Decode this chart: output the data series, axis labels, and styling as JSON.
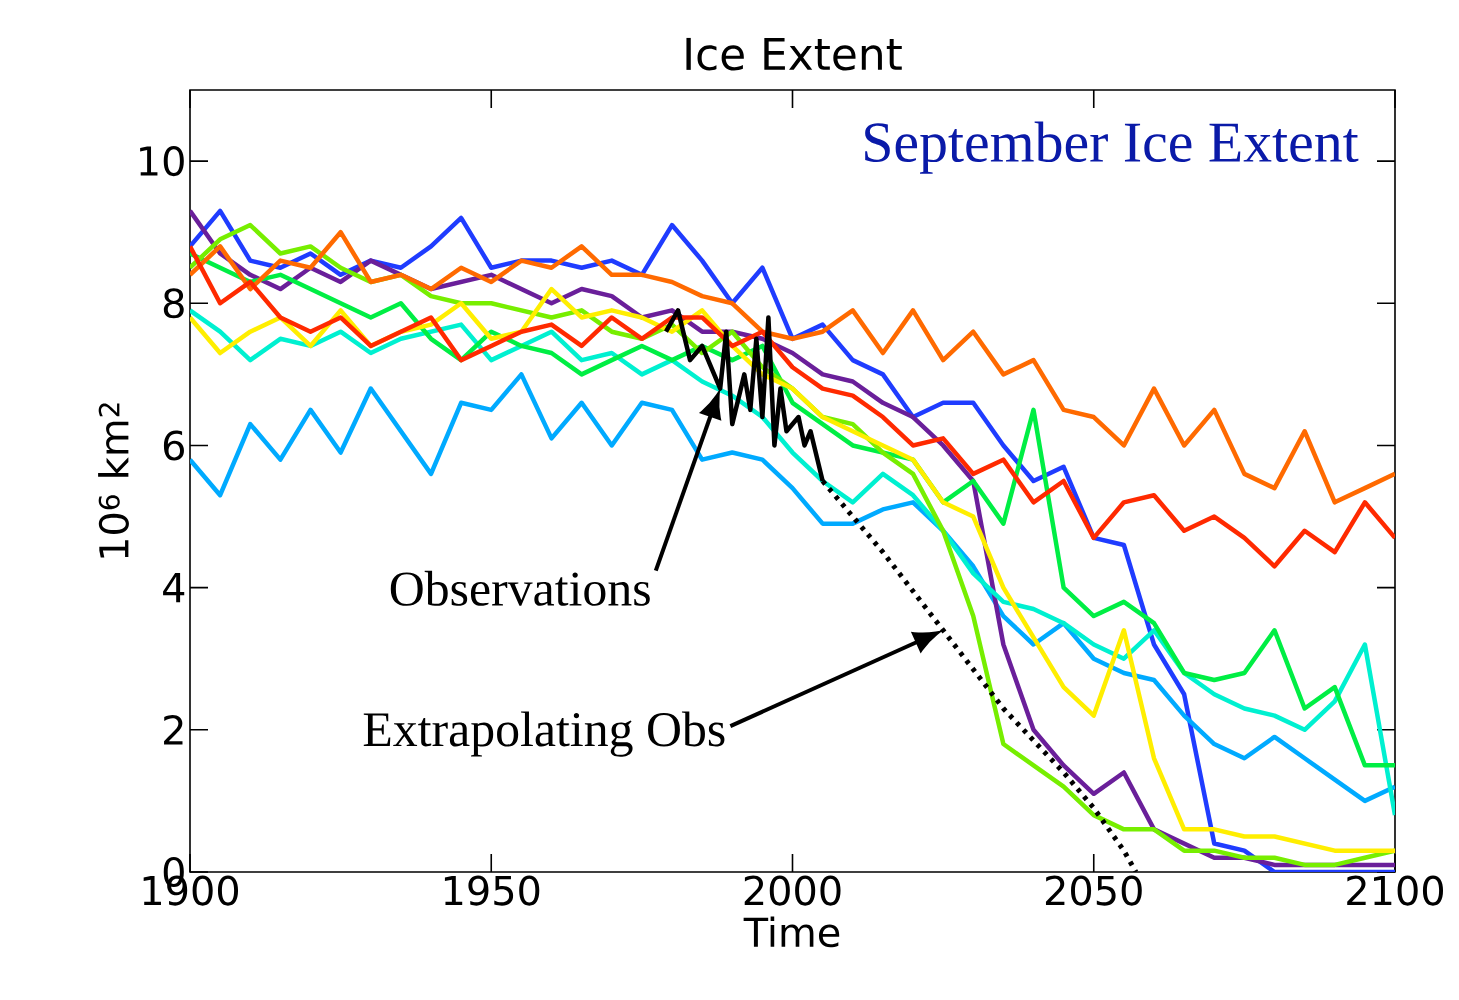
{
  "chart_data": {
    "type": "line",
    "title": "Ice Extent",
    "xlabel": "Time",
    "ylabel": "10$^{6}$ km$^{2}$",
    "xlim": [
      1900,
      2100
    ],
    "ylim": [
      0,
      11
    ],
    "xticks": [
      1900,
      1950,
      2000,
      2050,
      2100
    ],
    "yticks": [
      0,
      2,
      4,
      6,
      8,
      10
    ],
    "x": [
      1900,
      1905,
      1910,
      1915,
      1920,
      1925,
      1930,
      1935,
      1940,
      1945,
      1950,
      1955,
      1960,
      1965,
      1970,
      1975,
      1980,
      1985,
      1990,
      1995,
      2000,
      2005,
      2010,
      2015,
      2020,
      2025,
      2030,
      2035,
      2040,
      2045,
      2050,
      2055,
      2060,
      2065,
      2070,
      2075,
      2080,
      2085,
      2090,
      2095,
      2100
    ],
    "series": [
      {
        "color": "#1f3cff",
        "values": [
          8.8,
          9.3,
          8.6,
          8.5,
          8.7,
          8.4,
          8.6,
          8.5,
          8.8,
          9.2,
          8.5,
          8.6,
          8.6,
          8.5,
          8.6,
          8.4,
          9.1,
          8.6,
          8.0,
          8.5,
          7.5,
          7.7,
          7.2,
          7.0,
          6.4,
          6.6,
          6.6,
          6.0,
          5.5,
          5.7,
          4.7,
          4.6,
          3.2,
          2.5,
          0.4,
          0.3,
          0,
          0,
          0,
          0,
          0
        ]
      },
      {
        "color": "#00aaff",
        "values": [
          5.8,
          5.3,
          6.3,
          5.8,
          6.5,
          5.9,
          6.8,
          6.2,
          5.6,
          6.6,
          6.5,
          7.0,
          6.1,
          6.6,
          6.0,
          6.6,
          6.5,
          5.8,
          5.9,
          5.8,
          5.4,
          4.9,
          4.9,
          5.1,
          5.2,
          4.8,
          4.3,
          3.6,
          3.2,
          3.5,
          3.0,
          2.8,
          2.7,
          2.2,
          1.8,
          1.6,
          1.9,
          1.6,
          1.3,
          1.0,
          1.2
        ]
      },
      {
        "color": "#6a1f9a",
        "values": [
          9.3,
          8.7,
          8.4,
          8.2,
          8.5,
          8.3,
          8.6,
          8.4,
          8.2,
          8.3,
          8.4,
          8.2,
          8.0,
          8.2,
          8.1,
          7.8,
          7.9,
          7.6,
          7.6,
          7.5,
          7.3,
          7.0,
          6.9,
          6.6,
          6.4,
          6.0,
          5.5,
          3.2,
          2.0,
          1.5,
          1.1,
          1.4,
          0.6,
          0.4,
          0.2,
          0.2,
          0.1,
          0.1,
          0.1,
          0.1,
          0.1
        ]
      },
      {
        "color": "#00f0d0",
        "values": [
          7.9,
          7.6,
          7.2,
          7.5,
          7.4,
          7.6,
          7.3,
          7.5,
          7.6,
          7.7,
          7.2,
          7.4,
          7.6,
          7.2,
          7.3,
          7.0,
          7.2,
          6.9,
          6.7,
          6.4,
          5.9,
          5.5,
          5.2,
          5.6,
          5.3,
          4.8,
          4.2,
          3.8,
          3.7,
          3.5,
          3.2,
          3.0,
          3.4,
          2.8,
          2.5,
          2.3,
          2.2,
          2.0,
          2.4,
          3.2,
          0.8
        ]
      },
      {
        "color": "#00ee44",
        "values": [
          8.7,
          8.5,
          8.3,
          8.4,
          8.2,
          8.0,
          7.8,
          8.0,
          7.5,
          7.2,
          7.6,
          7.4,
          7.3,
          7.0,
          7.2,
          7.4,
          7.2,
          7.4,
          7.2,
          7.4,
          6.6,
          6.3,
          6.0,
          5.9,
          5.8,
          5.2,
          5.5,
          4.9,
          6.5,
          4.0,
          3.6,
          3.8,
          3.5,
          2.8,
          2.7,
          2.8,
          3.4,
          2.3,
          2.6,
          1.5,
          1.5
        ]
      },
      {
        "color": "#77ee00",
        "values": [
          8.5,
          8.9,
          9.1,
          8.7,
          8.8,
          8.5,
          8.3,
          8.4,
          8.1,
          8.0,
          8.0,
          7.9,
          7.8,
          7.9,
          7.6,
          7.5,
          7.7,
          7.3,
          7.6,
          7.1,
          6.8,
          6.4,
          6.3,
          5.9,
          5.6,
          4.8,
          3.6,
          1.8,
          1.5,
          1.2,
          0.8,
          0.6,
          0.6,
          0.3,
          0.3,
          0.2,
          0.2,
          0.1,
          0.1,
          0.2,
          0.3
        ]
      },
      {
        "color": "#ffee00",
        "values": [
          7.8,
          7.3,
          7.6,
          7.8,
          7.4,
          7.9,
          7.4,
          7.6,
          7.7,
          8.0,
          7.5,
          7.6,
          8.2,
          7.8,
          7.9,
          7.8,
          7.6,
          7.9,
          7.4,
          7.0,
          6.8,
          6.4,
          6.2,
          6.0,
          5.8,
          5.2,
          5.0,
          4.0,
          3.3,
          2.6,
          2.2,
          3.4,
          1.6,
          0.6,
          0.6,
          0.5,
          0.5,
          0.4,
          0.3,
          0.3,
          0.3
        ]
      },
      {
        "color": "#ff6a00",
        "values": [
          8.4,
          8.8,
          8.2,
          8.6,
          8.5,
          9.0,
          8.3,
          8.4,
          8.2,
          8.5,
          8.3,
          8.6,
          8.5,
          8.8,
          8.4,
          8.4,
          8.3,
          8.1,
          8.0,
          7.6,
          7.5,
          7.6,
          7.9,
          7.3,
          7.9,
          7.2,
          7.6,
          7.0,
          7.2,
          6.5,
          6.4,
          6.0,
          6.8,
          6.0,
          6.5,
          5.6,
          5.4,
          6.2,
          5.2,
          5.4,
          5.6
        ]
      },
      {
        "color": "#ff2a00",
        "values": [
          8.8,
          8.0,
          8.3,
          7.8,
          7.6,
          7.8,
          7.4,
          7.6,
          7.8,
          7.2,
          7.4,
          7.6,
          7.7,
          7.4,
          7.8,
          7.5,
          7.8,
          7.8,
          7.4,
          7.6,
          7.1,
          6.8,
          6.7,
          6.4,
          6.0,
          6.1,
          5.6,
          5.8,
          5.2,
          5.5,
          4.7,
          5.2,
          5.3,
          4.8,
          5.0,
          4.7,
          4.3,
          4.8,
          4.5,
          5.2,
          4.7
        ]
      },
      {
        "color": "#000000",
        "x": [
          1979,
          1981,
          1983,
          1985,
          1987,
          1988,
          1989,
          1990,
          1992,
          1993,
          1994,
          1995,
          1996,
          1997,
          1998,
          1999,
          2001,
          2002,
          2003,
          2005
        ],
        "values": [
          7.6,
          7.9,
          7.2,
          7.4,
          7.0,
          6.8,
          7.6,
          6.3,
          7.0,
          6.5,
          7.5,
          6.4,
          7.8,
          6.0,
          6.8,
          6.2,
          6.4,
          6.0,
          6.2,
          5.5
        ]
      },
      {
        "color": "#000000",
        "line_style": "dotted",
        "x": [
          2005,
          2015,
          2025,
          2035,
          2045,
          2050,
          2055,
          2057
        ],
        "values": [
          5.5,
          4.5,
          3.4,
          2.3,
          1.4,
          0.9,
          0.3,
          0
        ]
      }
    ],
    "annotations": [
      "Observations",
      "Extrapolating Obs",
      "September Ice Extent"
    ]
  }
}
